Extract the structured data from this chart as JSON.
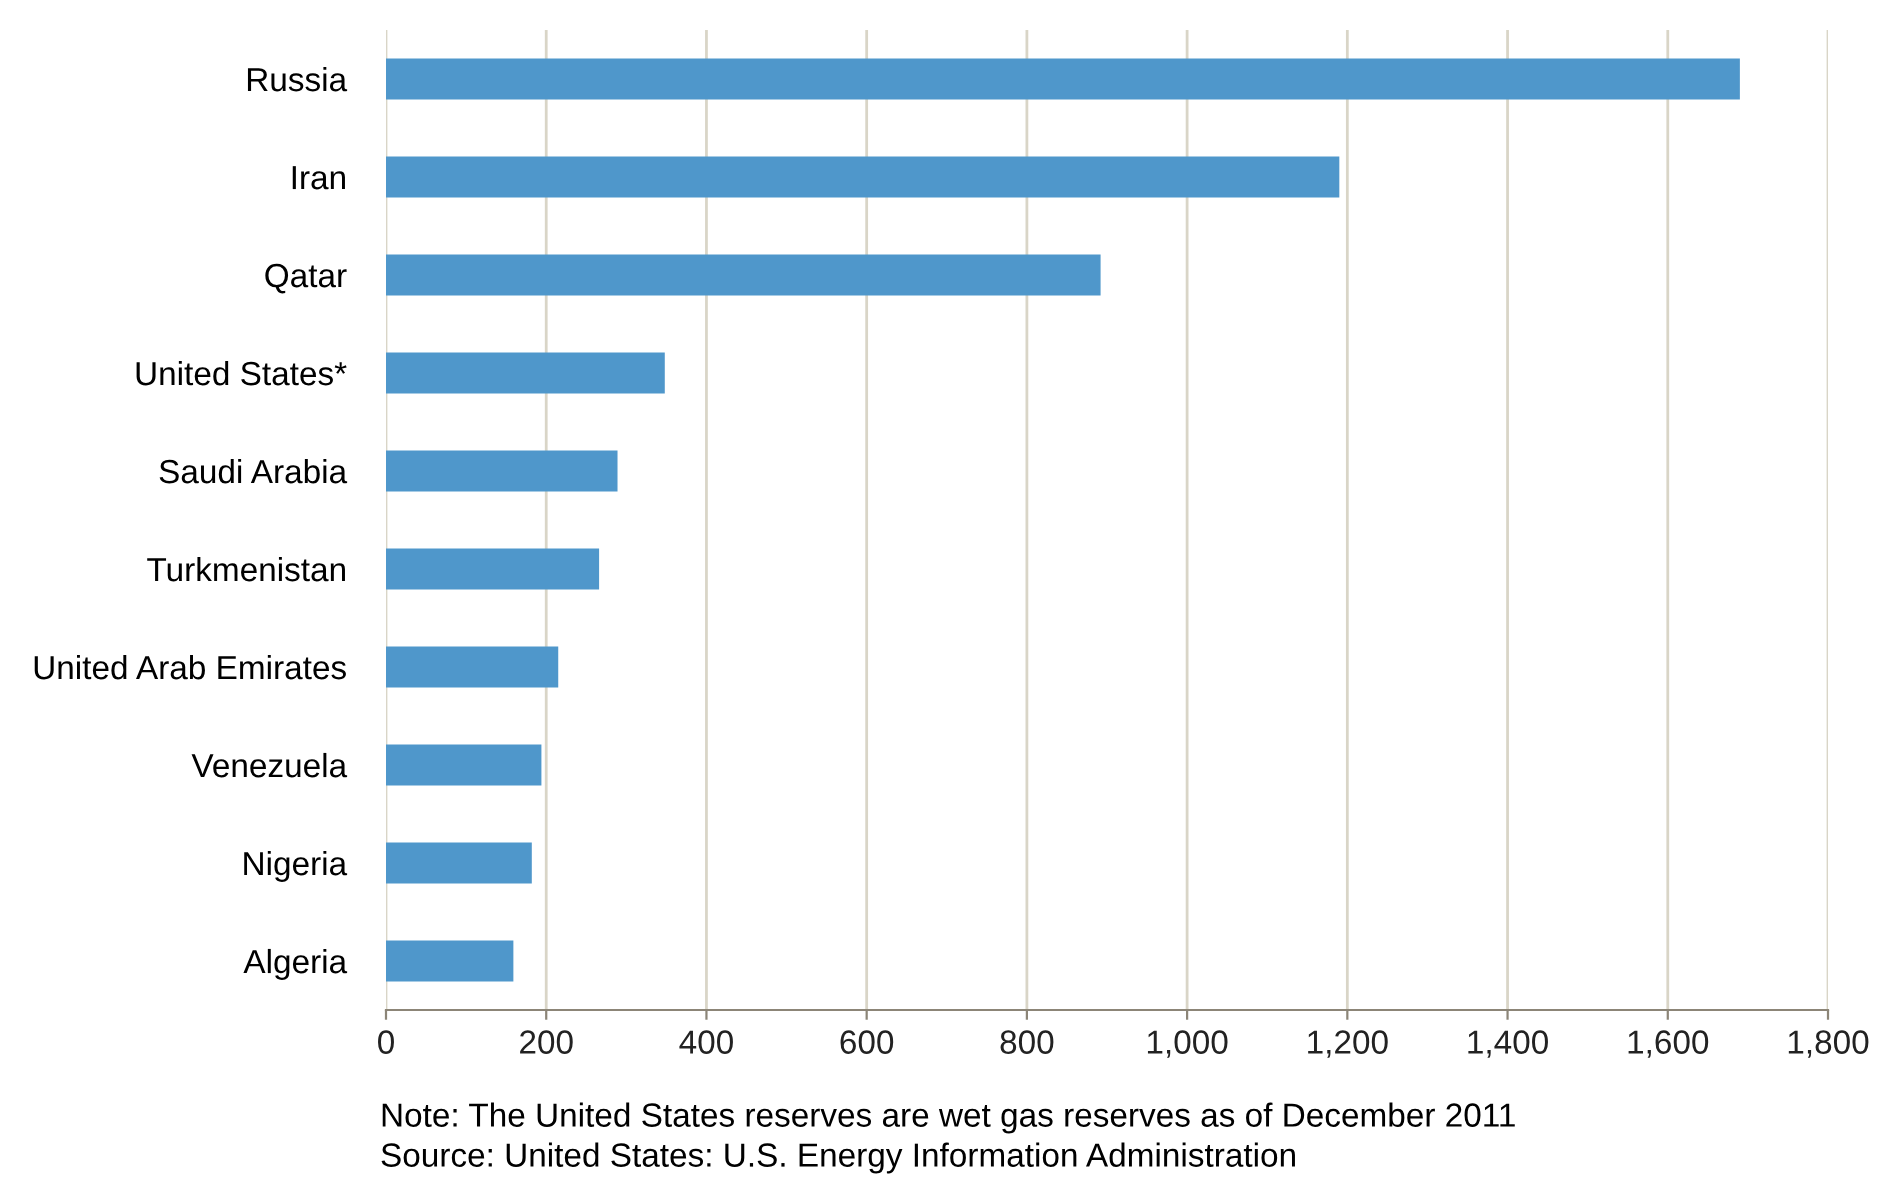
{
  "chart_data": {
    "type": "bar",
    "orientation": "horizontal",
    "categories": [
      "Russia",
      "Iran",
      "Qatar",
      "United States*",
      "Saudi Arabia",
      "Turkmenistan",
      "United Arab Emirates",
      "Venezuela",
      "Nigeria",
      "Algeria"
    ],
    "values": [
      1690,
      1190,
      892,
      348,
      289,
      266,
      215,
      194,
      182,
      159
    ],
    "color": "#4f97cb",
    "xlim": [
      0,
      1800
    ],
    "xticks": [
      0,
      200,
      400,
      600,
      800,
      {
        "value": 1000,
        "label": "1,000"
      },
      {
        "value": 1200,
        "label": "1,200"
      },
      {
        "value": 1400,
        "label": "1,400"
      },
      {
        "value": 1600,
        "label": "1,600"
      },
      {
        "value": 1800,
        "label": "1,800"
      }
    ],
    "grid": "x",
    "legend": false,
    "annotations": [
      "Note: The United States reserves are wet gas reserves as of December 2011",
      "Source: United States: U.S. Energy Information Administration"
    ]
  }
}
